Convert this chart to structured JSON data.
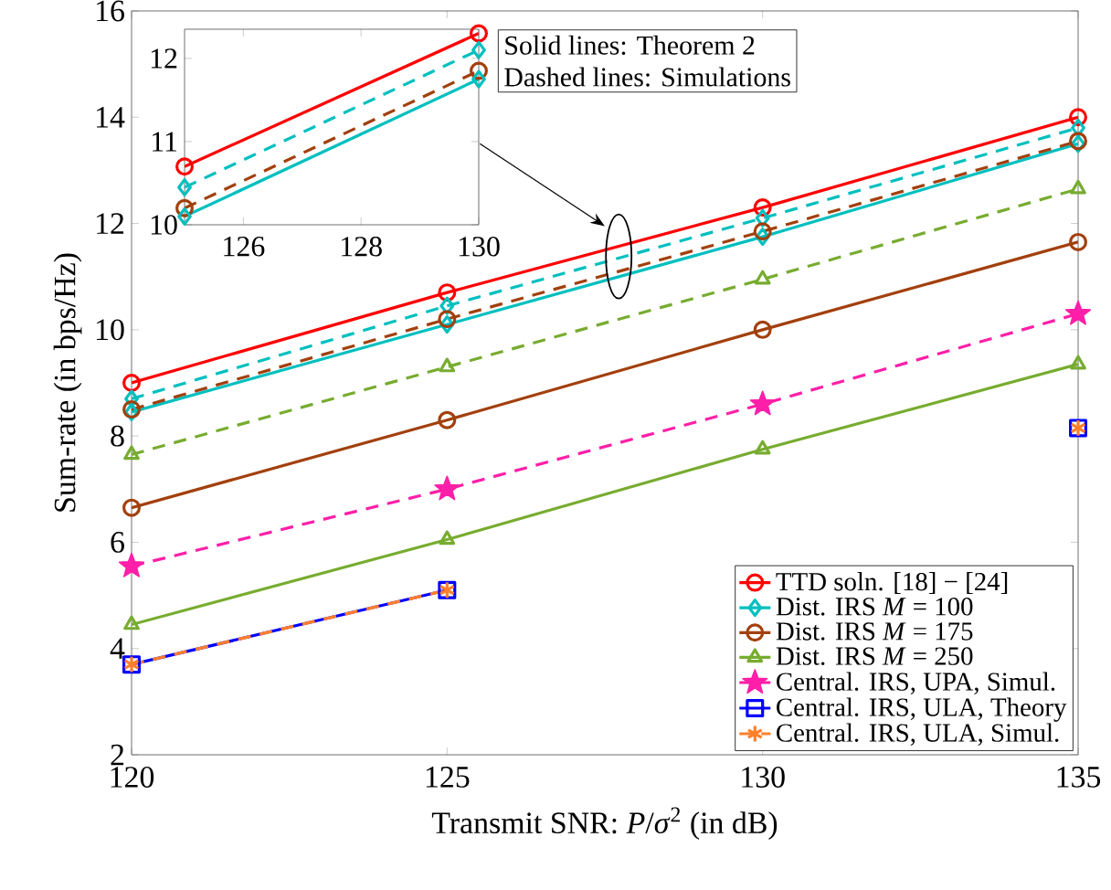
{
  "chart_data": [
    {
      "type": "line",
      "xlabel": "Transmit SNR: *P*/*σ*$^{2}$ (in dB)",
      "ylabel": "Sum-rate (in bps/Hz)",
      "x": [
        120,
        125,
        130,
        135
      ],
      "xlim": [
        120,
        135
      ],
      "ylim": [
        2,
        16
      ],
      "xticks": [
        120,
        125,
        130,
        135
      ],
      "yticks": [
        2,
        4,
        6,
        8,
        10,
        12,
        14,
        16
      ],
      "legend": "bottom right",
      "grid": false,
      "annotations": [
        "Solid lines: Theorem 2",
        "Dashed lines: Simulations"
      ],
      "series": [
        {
          "name": "TTD soln. [18] − [24]",
          "color": "#ff0000",
          "marker": "circle",
          "line_style": "solid",
          "values": [
            9.0,
            10.7,
            12.3,
            14.0
          ]
        },
        {
          "name": "Dist. IRS *M* = 100",
          "color": "#00bfbf",
          "marker": "diamond",
          "line_style": "solid",
          "values": [
            8.45,
            10.1,
            11.75,
            13.5
          ]
        },
        {
          "name": "Dist. IRS *M* = 175",
          "color": "#a2400d",
          "marker": "circle",
          "line_style": "solid",
          "values": [
            6.65,
            8.3,
            10.0,
            11.65
          ]
        },
        {
          "name": "Dist. IRS *M* = 250",
          "color": "#77ac30",
          "marker": "triangle",
          "line_style": "solid",
          "values": [
            4.45,
            6.05,
            7.75,
            9.35
          ]
        },
        {
          "name": "Central. IRS, UPA, Simul.",
          "color": "#ff1fa8",
          "marker": "star",
          "line_style": "dashed",
          "values": [
            5.55,
            7.0,
            8.6,
            10.3
          ]
        },
        {
          "name": "Central. IRS, ULA, Theory",
          "color": "#0000ff",
          "marker": "square",
          "line_style": "solid",
          "values": [
            3.7,
            5.1,
            null,
            8.15
          ]
        },
        {
          "name": "Central. IRS, ULA, Simul.",
          "color": "#ff7f2a",
          "marker": "cross",
          "line_style": "dashed",
          "values": [
            3.7,
            5.1,
            null,
            8.15
          ]
        },
        {
          "color": "#00bfbf",
          "marker": "diamond",
          "line_style": "dashed",
          "values": [
            8.7,
            10.45,
            12.1,
            13.8
          ]
        },
        {
          "color": "#a2400d",
          "marker": "circle",
          "line_style": "dashed",
          "values": [
            8.5,
            10.2,
            11.85,
            13.55
          ]
        },
        {
          "color": "#77ac30",
          "marker": "triangle",
          "line_style": "dashed",
          "values": [
            7.65,
            9.3,
            10.95,
            12.65
          ]
        }
      ]
    },
    {
      "type": "line",
      "x": [
        125,
        130
      ],
      "xlim": [
        125,
        130
      ],
      "ylim": [
        10,
        12.35
      ],
      "xticks": [
        126,
        128,
        130
      ],
      "yticks": [
        10,
        11,
        12
      ],
      "grid": false,
      "series": [
        {
          "color": "#ff0000",
          "marker": "circle",
          "line_style": "solid",
          "values": [
            10.7,
            12.3
          ]
        },
        {
          "color": "#00bfbf",
          "marker": "diamond",
          "line_style": "dashed",
          "values": [
            10.45,
            12.1
          ]
        },
        {
          "color": "#a2400d",
          "marker": "circle",
          "line_style": "dashed",
          "values": [
            10.2,
            11.85
          ]
        },
        {
          "color": "#00bfbf",
          "marker": "diamond",
          "line_style": "solid",
          "values": [
            10.1,
            11.75
          ]
        }
      ]
    }
  ]
}
